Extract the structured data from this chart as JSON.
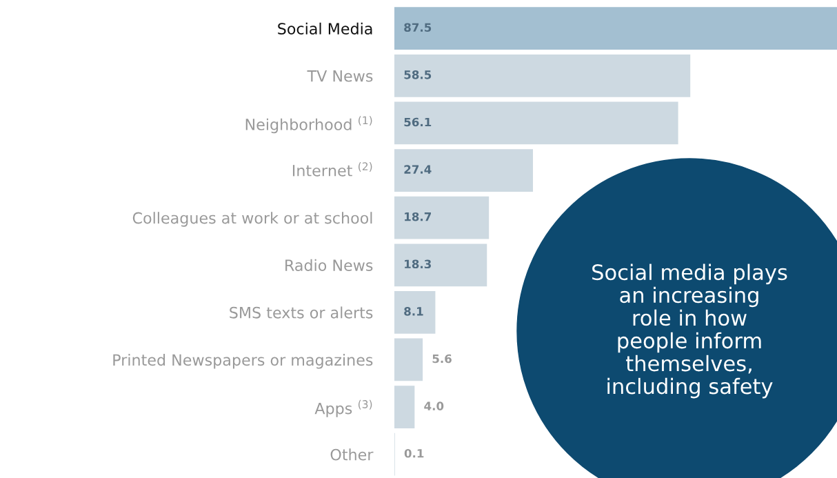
{
  "chart_data": {
    "type": "bar",
    "orientation": "horizontal",
    "categories": [
      "Social Media",
      "TV News",
      "Neighborhood $^{(1)}$",
      "Internet $^{(2)}$",
      "Colleagues at work or at school",
      "Radio News",
      "SMS texts or alerts",
      "Printed Newspapers or magazines",
      "Apps $^{(3)}$",
      "Other"
    ],
    "values": [
      87.5,
      58.5,
      56.1,
      27.4,
      18.7,
      18.3,
      8.1,
      5.6,
      4.0,
      0.1
    ],
    "value_labels": [
      "87.5",
      "58.5",
      "56.1",
      "27.4",
      "18.7",
      "18.3",
      "8.1",
      "5.6",
      "4.0",
      "0.1"
    ],
    "colors": [
      "#a3bfd1",
      "#cdd9e1",
      "#cdd9e1",
      "#cdd9e1",
      "#cdd9e1",
      "#cdd9e1",
      "#cdd9e1",
      "#cdd9e1",
      "#cdd9e1",
      "#cdd9e1"
    ],
    "annotations": [
      "Social media plays\nan increasing\nrole in how\npeople inform\nthemselves,\nincluding safety"
    ],
    "grid": false,
    "legend": false
  }
}
